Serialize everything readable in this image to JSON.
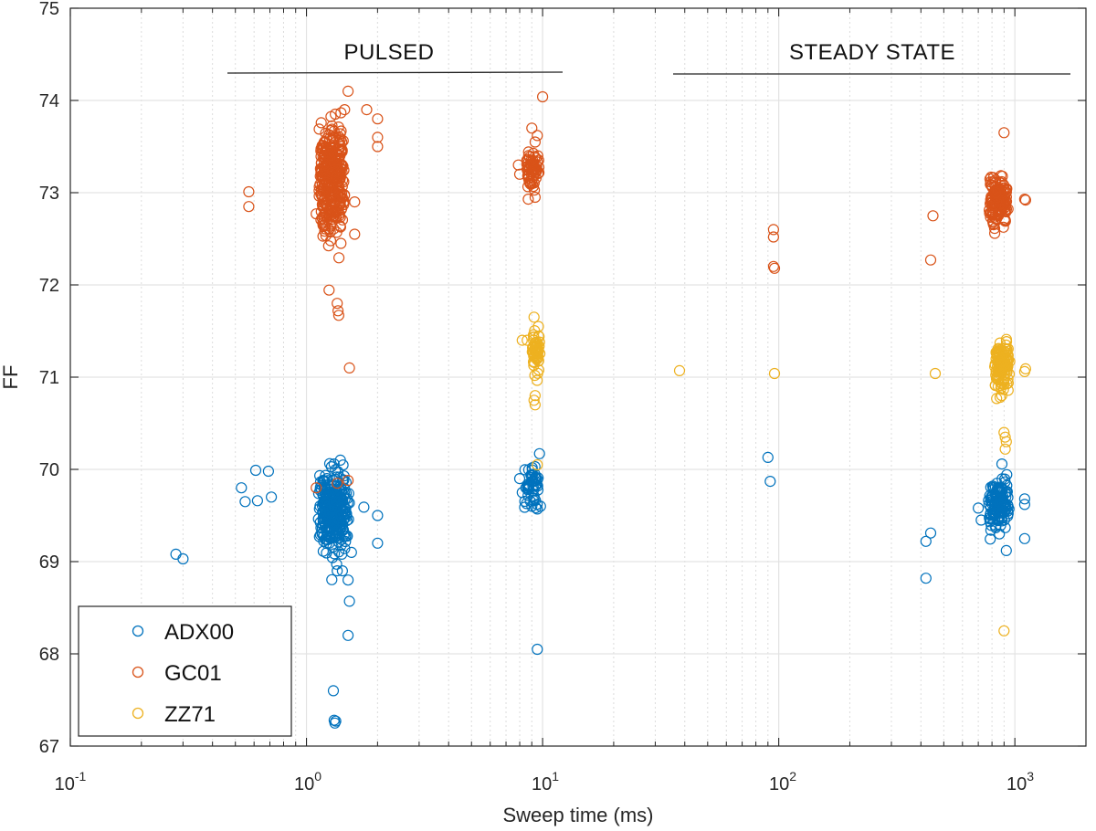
{
  "chart_data": {
    "type": "scatter",
    "title": "",
    "xlabel": "Sweep time (ms)",
    "ylabel": "FF",
    "xscale": "log",
    "xlim": [
      0.1,
      2000
    ],
    "ylim": [
      67,
      75
    ],
    "grid": true,
    "legend_position": "bottom-left",
    "x_tick_labels": [
      {
        "base": "10",
        "exp": "-1"
      },
      {
        "base": "10",
        "exp": "0"
      },
      {
        "base": "10",
        "exp": "1"
      },
      {
        "base": "10",
        "exp": "2"
      },
      {
        "base": "10",
        "exp": "3"
      }
    ],
    "y_tick_labels": [
      "67",
      "68",
      "69",
      "70",
      "71",
      "72",
      "73",
      "74",
      "75"
    ],
    "annotations": [
      {
        "text": "PULSED",
        "x_range": [
          0.47,
          12
        ],
        "line_y": 74.3
      },
      {
        "text": "STEADY STATE",
        "x_range": [
          33,
          1650
        ],
        "line_y": 74.3
      }
    ],
    "series": [
      {
        "name": "ADX00",
        "color": "#0072BD",
        "points": [
          [
            0.28,
            69.08
          ],
          [
            0.3,
            69.03
          ],
          [
            0.53,
            69.8
          ],
          [
            0.55,
            69.65
          ],
          [
            0.61,
            69.99
          ],
          [
            0.62,
            69.66
          ],
          [
            0.69,
            69.98
          ],
          [
            0.71,
            69.7
          ],
          [
            1.2,
            69.8
          ],
          [
            1.22,
            69.9
          ],
          [
            1.25,
            69.2
          ],
          [
            1.3,
            69.4
          ],
          [
            1.35,
            69.6
          ],
          [
            1.4,
            69.5
          ],
          [
            1.45,
            69.3
          ],
          [
            1.3,
            67.6
          ],
          [
            1.31,
            67.28
          ],
          [
            1.32,
            67.25
          ],
          [
            1.33,
            67.27
          ],
          [
            1.35,
            68.9
          ],
          [
            1.42,
            68.9
          ],
          [
            1.5,
            68.8
          ],
          [
            1.52,
            68.57
          ],
          [
            1.5,
            68.2
          ],
          [
            1.75,
            69.59
          ],
          [
            2.0,
            69.5
          ],
          [
            2.0,
            69.2
          ],
          [
            1.55,
            69.1
          ],
          [
            8.0,
            69.9
          ],
          [
            8.2,
            69.75
          ],
          [
            8.5,
            69.8
          ],
          [
            9.0,
            69.6
          ],
          [
            9.5,
            69.57
          ],
          [
            9.8,
            69.6
          ],
          [
            9.7,
            70.17
          ],
          [
            9.5,
            68.05
          ],
          [
            90,
            70.13
          ],
          [
            92,
            69.87
          ],
          [
            420,
            69.22
          ],
          [
            440,
            69.31
          ],
          [
            420,
            68.82
          ],
          [
            700,
            69.58
          ],
          [
            720,
            69.45
          ],
          [
            1100,
            69.25
          ],
          [
            1100,
            69.62
          ],
          [
            1100,
            69.68
          ],
          [
            920,
            69.12
          ],
          [
            850,
            69.8
          ],
          [
            860,
            69.3
          ]
        ],
        "clusters": [
          {
            "center": [
              1.3,
              69.55
            ],
            "x_spread": 0.07,
            "y_sd": 0.22,
            "n": 280
          },
          {
            "center": [
              9.0,
              69.82
            ],
            "x_spread": 0.035,
            "y_sd": 0.09,
            "n": 45
          },
          {
            "center": [
              850,
              69.6
            ],
            "x_spread": 0.05,
            "y_sd": 0.14,
            "n": 130
          }
        ]
      },
      {
        "name": "GC01",
        "color": "#D95319",
        "points": [
          [
            0.57,
            73.01
          ],
          [
            0.57,
            72.85
          ],
          [
            1.1,
            69.8
          ],
          [
            1.35,
            69.85
          ],
          [
            1.5,
            69.88
          ],
          [
            1.35,
            71.8
          ],
          [
            1.36,
            71.72
          ],
          [
            1.37,
            71.67
          ],
          [
            1.52,
            71.1
          ],
          [
            1.5,
            74.1
          ],
          [
            1.45,
            73.9
          ],
          [
            1.8,
            73.9
          ],
          [
            2.0,
            73.8
          ],
          [
            2.0,
            73.6
          ],
          [
            2.0,
            73.5
          ],
          [
            1.6,
            72.55
          ],
          [
            1.4,
            72.45
          ],
          [
            1.1,
            72.77
          ],
          [
            1.6,
            72.9
          ],
          [
            9.0,
            73.7
          ],
          [
            9.3,
            73.55
          ],
          [
            9.5,
            73.62
          ],
          [
            10.0,
            74.04
          ],
          [
            8.0,
            73.2
          ],
          [
            7.9,
            73.3
          ],
          [
            9.3,
            72.95
          ],
          [
            8.7,
            72.93
          ],
          [
            95,
            72.6
          ],
          [
            95,
            72.52
          ],
          [
            95,
            72.2
          ],
          [
            96,
            72.18
          ],
          [
            450,
            72.75
          ],
          [
            440,
            72.27
          ],
          [
            830,
            73.0
          ],
          [
            900,
            73.65
          ],
          [
            850,
            72.75
          ],
          [
            1100,
            72.93
          ],
          [
            1110,
            72.92
          ]
        ],
        "clusters": [
          {
            "center": [
              1.28,
              73.15
            ],
            "x_spread": 0.06,
            "y_sd": 0.3,
            "n": 320
          },
          {
            "center": [
              9.1,
              73.25
            ],
            "x_spread": 0.03,
            "y_sd": 0.1,
            "n": 60
          },
          {
            "center": [
              850,
              72.9
            ],
            "x_spread": 0.045,
            "y_sd": 0.13,
            "n": 140
          }
        ]
      },
      {
        "name": "ZZ71",
        "color": "#EDB120",
        "points": [
          [
            38,
            71.07
          ],
          [
            96,
            71.04
          ],
          [
            460,
            71.04
          ],
          [
            9.2,
            71.65
          ],
          [
            9.6,
            71.55
          ],
          [
            9.3,
            70.8
          ],
          [
            9.2,
            70.75
          ],
          [
            9.3,
            70.7
          ],
          [
            9.5,
            70.05
          ],
          [
            8.6,
            71.4
          ],
          [
            8.2,
            71.4
          ],
          [
            900,
            70.4
          ],
          [
            910,
            70.35
          ],
          [
            910,
            70.22
          ],
          [
            920,
            70.3
          ],
          [
            900,
            68.25
          ],
          [
            850,
            70.9
          ],
          [
            1100,
            71.06
          ],
          [
            1110,
            71.09
          ],
          [
            880,
            70.8
          ]
        ],
        "clusters": [
          {
            "center": [
              9.4,
              71.28
            ],
            "x_spread": 0.02,
            "y_sd": 0.1,
            "n": 55
          },
          {
            "center": [
              880,
              71.12
            ],
            "x_spread": 0.035,
            "y_sd": 0.12,
            "n": 110
          }
        ]
      }
    ]
  }
}
